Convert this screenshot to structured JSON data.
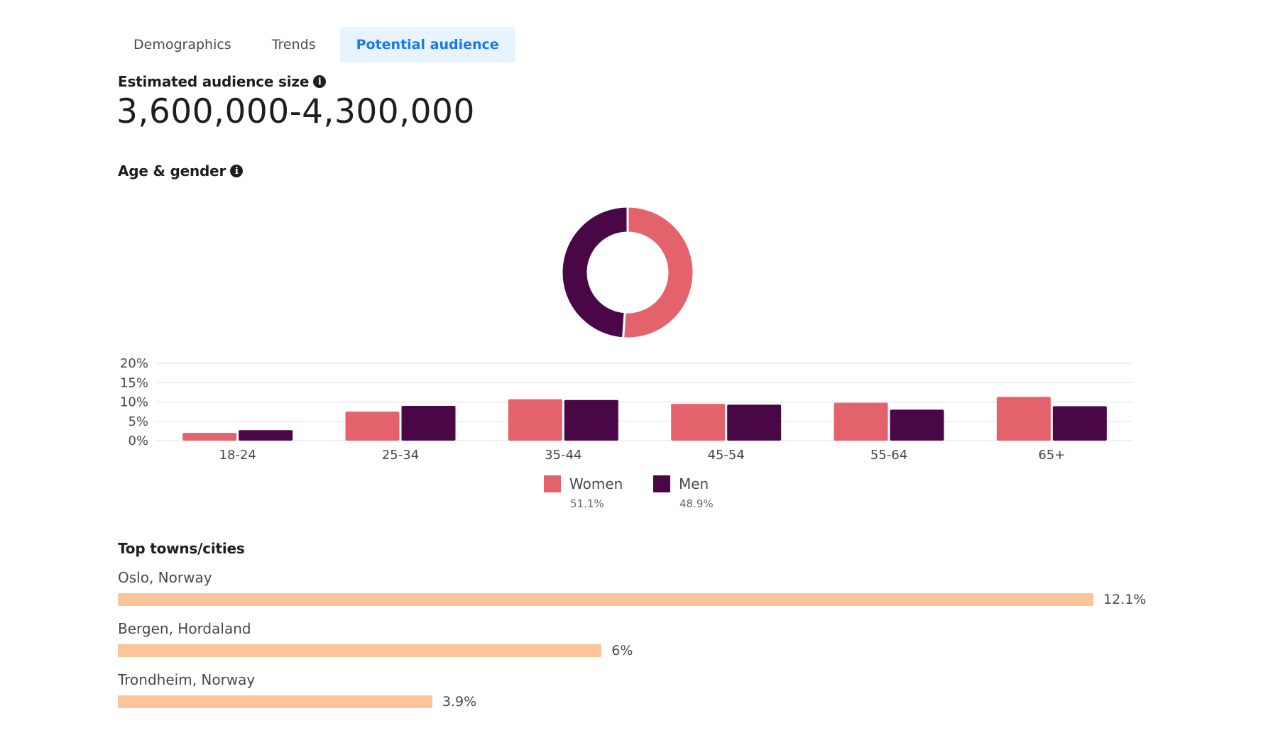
{
  "tabs": [
    {
      "label": "Demographics",
      "active": false
    },
    {
      "label": "Trends",
      "active": false
    },
    {
      "label": "Potential audience",
      "active": true
    }
  ],
  "audience_size": {
    "label": "Estimated audience size",
    "value": "3,600,000-4,300,000"
  },
  "age_gender": {
    "label": "Age & gender",
    "legend": [
      {
        "name": "Women",
        "pct": "51.1%",
        "color": "#e4626c"
      },
      {
        "name": "Men",
        "pct": "48.9%",
        "color": "#4a0748"
      }
    ]
  },
  "top_cities": {
    "label": "Top towns/cities",
    "items": [
      {
        "name": "Oslo, Norway",
        "value": 12.1,
        "display": "12.1%"
      },
      {
        "name": "Bergen, Hordaland",
        "value": 6,
        "display": "6%"
      },
      {
        "name": "Trondheim, Norway",
        "value": 3.9,
        "display": "3.9%"
      }
    ],
    "bar_color": "#fdc49a",
    "max_value": 12.1
  },
  "chart_data": [
    {
      "type": "pie",
      "subtype": "donut",
      "title": "",
      "labels": [
        "Women",
        "Men"
      ],
      "values": [
        51.1,
        48.9
      ],
      "colors": [
        "#e4626c",
        "#4a0748"
      ]
    },
    {
      "type": "bar",
      "title": "",
      "xlabel": "",
      "ylabel": "",
      "categories": [
        "18-24",
        "25-34",
        "35-44",
        "45-54",
        "55-64",
        "65+"
      ],
      "series": [
        {
          "name": "Women",
          "color": "#e4626c",
          "values": [
            2,
            7.5,
            10.7,
            9.5,
            9.8,
            11.3
          ]
        },
        {
          "name": "Men",
          "color": "#4a0748",
          "values": [
            2.7,
            9,
            10.5,
            9.3,
            8,
            8.9
          ]
        }
      ],
      "ylim": [
        0,
        20
      ],
      "yticks": [
        "0%",
        "5%",
        "10%",
        "15%",
        "20%"
      ],
      "ytick_values": [
        0,
        5,
        10,
        15,
        20
      ],
      "grid": true,
      "legend": "bottom"
    }
  ]
}
